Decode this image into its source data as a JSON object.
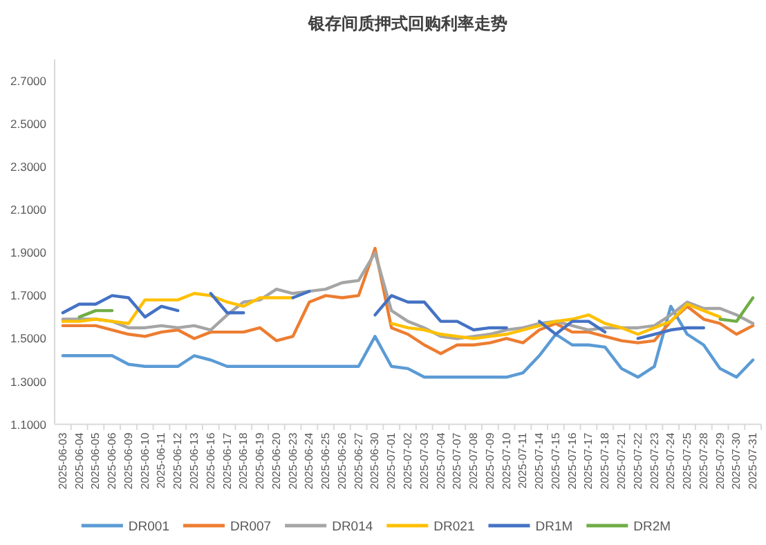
{
  "chart_data": {
    "type": "line",
    "title": "银存间质押式回购利率走势",
    "categories": [
      "2025-06-03",
      "2025-06-04",
      "2025-06-05",
      "2025-06-06",
      "2025-06-09",
      "2025-06-10",
      "2025-06-11",
      "2025-06-12",
      "2025-06-13",
      "2025-06-16",
      "2025-06-17",
      "2025-06-18",
      "2025-06-19",
      "2025-06-20",
      "2025-06-23",
      "2025-06-24",
      "2025-06-25",
      "2025-06-26",
      "2025-06-27",
      "2025-06-30",
      "2025-07-01",
      "2025-07-02",
      "2025-07-03",
      "2025-07-04",
      "2025-07-07",
      "2025-07-08",
      "2025-07-09",
      "2025-07-10",
      "2025-07-11",
      "2025-07-14",
      "2025-07-15",
      "2025-07-16",
      "2025-07-17",
      "2025-07-18",
      "2025-07-21",
      "2025-07-22",
      "2025-07-23",
      "2025-07-24",
      "2025-07-25",
      "2025-07-28",
      "2025-07-29",
      "2025-07-30",
      "2025-07-31"
    ],
    "series": [
      {
        "name": "DR001",
        "color": "#5b9bd5",
        "values": [
          1.42,
          1.42,
          1.42,
          1.42,
          1.38,
          1.37,
          1.37,
          1.37,
          1.42,
          1.4,
          1.37,
          1.37,
          1.37,
          1.37,
          1.37,
          1.37,
          1.37,
          1.37,
          1.37,
          1.51,
          1.37,
          1.36,
          1.32,
          1.32,
          1.32,
          1.32,
          1.32,
          1.32,
          1.34,
          1.42,
          1.52,
          1.47,
          1.47,
          1.46,
          1.36,
          1.32,
          1.37,
          1.65,
          1.52,
          1.47,
          1.36,
          1.32,
          1.4
        ]
      },
      {
        "name": "DR007",
        "color": "#ed7d31",
        "values": [
          1.56,
          1.56,
          1.56,
          1.54,
          1.52,
          1.51,
          1.53,
          1.54,
          1.5,
          1.53,
          1.53,
          1.53,
          1.55,
          1.49,
          1.51,
          1.67,
          1.7,
          1.69,
          1.7,
          1.92,
          1.55,
          1.52,
          1.47,
          1.43,
          1.47,
          1.47,
          1.48,
          1.5,
          1.48,
          1.54,
          1.57,
          1.53,
          1.53,
          1.51,
          1.49,
          1.48,
          1.49,
          1.58,
          1.65,
          1.59,
          1.57,
          1.52,
          1.56
        ]
      },
      {
        "name": "DR014",
        "color": "#a5a5a5",
        "values": [
          1.59,
          1.59,
          1.59,
          1.58,
          1.55,
          1.55,
          1.56,
          1.55,
          1.56,
          1.54,
          1.61,
          1.67,
          1.68,
          1.73,
          1.71,
          1.72,
          1.73,
          1.76,
          1.77,
          1.9,
          1.63,
          1.58,
          1.55,
          1.51,
          1.5,
          1.51,
          1.52,
          1.54,
          1.55,
          1.57,
          1.58,
          1.56,
          1.54,
          1.55,
          1.55,
          1.55,
          1.56,
          1.61,
          1.67,
          1.64,
          1.64,
          1.61,
          1.57
        ]
      },
      {
        "name": "DR021",
        "color": "#ffc000",
        "values": [
          1.58,
          1.58,
          1.59,
          1.58,
          1.57,
          1.68,
          1.68,
          1.68,
          1.71,
          1.7,
          1.67,
          1.65,
          1.69,
          1.69,
          1.69,
          null,
          null,
          null,
          null,
          null,
          1.57,
          1.55,
          1.54,
          1.52,
          1.51,
          1.5,
          1.51,
          1.52,
          1.54,
          1.56,
          1.58,
          1.59,
          1.61,
          1.57,
          1.55,
          1.52,
          1.55,
          1.58,
          1.66,
          1.63,
          1.6,
          null,
          null
        ]
      },
      {
        "name": "DR1M",
        "color": "#4472c4",
        "values": [
          1.62,
          1.66,
          1.66,
          1.7,
          1.69,
          1.6,
          1.65,
          1.63,
          null,
          1.71,
          1.62,
          1.62,
          null,
          null,
          1.69,
          1.72,
          null,
          null,
          null,
          1.61,
          1.7,
          1.67,
          1.67,
          1.58,
          1.58,
          1.54,
          1.55,
          1.55,
          null,
          1.58,
          1.52,
          1.58,
          1.58,
          1.53,
          null,
          1.5,
          1.52,
          1.54,
          1.55,
          1.55,
          null,
          null,
          null
        ]
      },
      {
        "name": "DR2M",
        "color": "#70ad47",
        "values": [
          null,
          1.6,
          1.63,
          1.63,
          null,
          null,
          null,
          null,
          null,
          null,
          null,
          null,
          null,
          null,
          null,
          null,
          null,
          null,
          null,
          null,
          null,
          null,
          null,
          null,
          null,
          null,
          null,
          null,
          null,
          null,
          null,
          null,
          null,
          null,
          null,
          null,
          null,
          null,
          null,
          null,
          1.59,
          1.58,
          1.69
        ]
      }
    ],
    "ylim": [
      1.1,
      2.8
    ],
    "yticks": [
      {
        "value": 1.1,
        "label": "1.1000"
      },
      {
        "value": 1.3,
        "label": "1.3000"
      },
      {
        "value": 1.5,
        "label": "1.5000"
      },
      {
        "value": 1.7,
        "label": "1.7000"
      },
      {
        "value": 1.9,
        "label": "1.9000"
      },
      {
        "value": 2.1,
        "label": "2.1000"
      },
      {
        "value": 2.3,
        "label": "2.3000"
      },
      {
        "value": 2.5,
        "label": "2.5000"
      },
      {
        "value": 2.7,
        "label": "2.7000"
      }
    ],
    "grid": false,
    "legend": "bottom",
    "marker": "none",
    "line_style": "solid"
  }
}
